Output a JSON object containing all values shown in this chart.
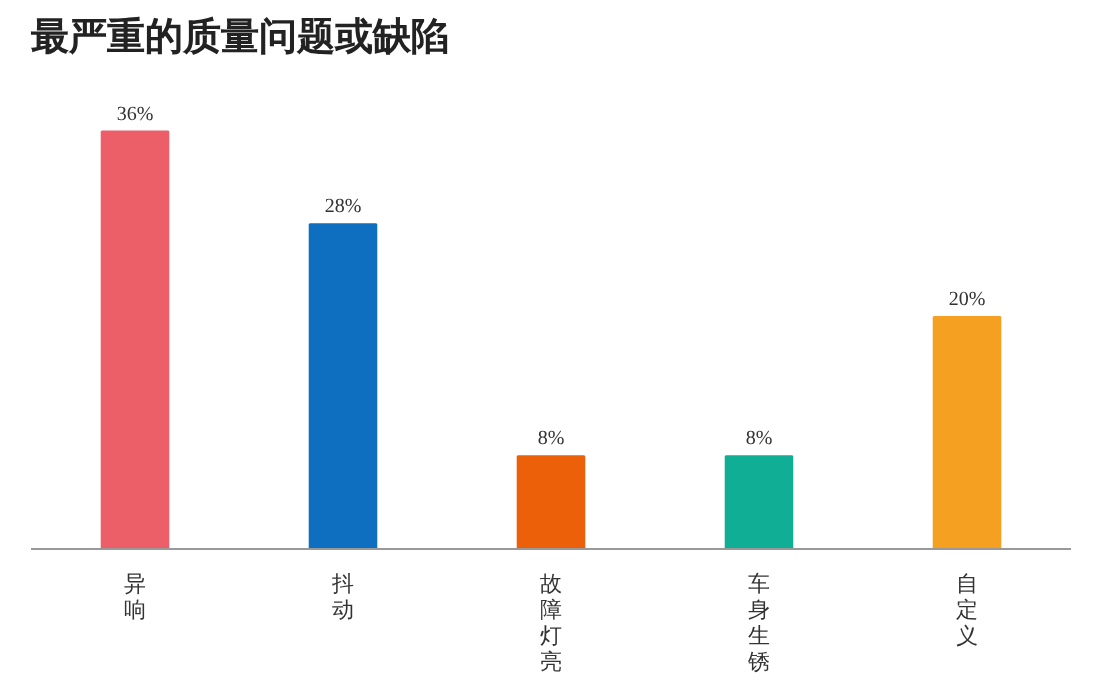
{
  "chart_data": {
    "type": "bar",
    "title": "最严重的质量问题或缺陷",
    "categories": [
      "异响",
      "抖动",
      "故障灯亮",
      "车身生锈",
      "自定义"
    ],
    "values": [
      36,
      28,
      8,
      8,
      20
    ],
    "colors": [
      "#ec5f69",
      "#0e6fc0",
      "#eb6008",
      "#10ae95",
      "#f5a021"
    ],
    "value_labels": [
      "36%",
      "28%",
      "8%",
      "8%",
      "20%"
    ],
    "tick_labels": "x",
    "grid": false
  }
}
